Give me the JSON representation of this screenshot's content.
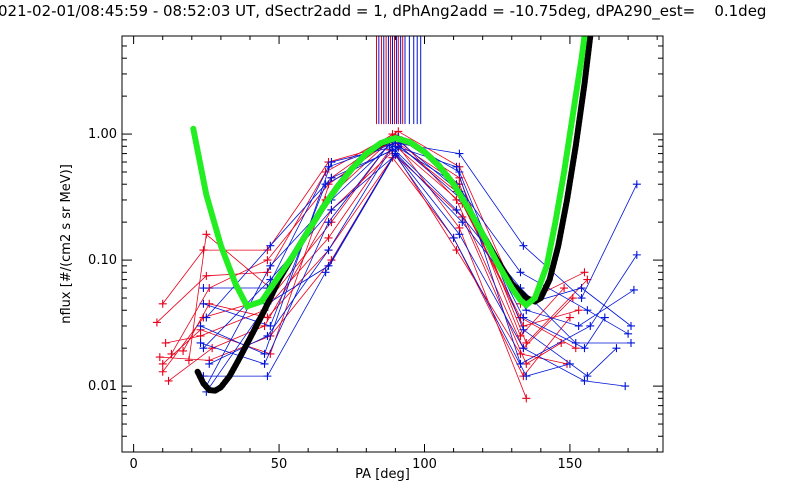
{
  "chart_data": {
    "type": "line",
    "title": "021-02-01/08:45:59 - 08:52:03 UT, dSectr2add = 1, dPhAng2add = -10.75deg, dPA290_est=    0.1deg",
    "xlabel": "PA [deg]",
    "ylabel": "nflux [#/(cm2 s sr MeV)]",
    "xlim": [
      -4,
      182
    ],
    "ylim": [
      0.003,
      6
    ],
    "yscale": "log",
    "x_ticks": [
      0,
      50,
      100,
      150
    ],
    "x_tick_labels": [
      "0",
      "50",
      "100",
      "150"
    ],
    "y_ticks": [
      0.01,
      0.1,
      1.0
    ],
    "y_tick_labels": [
      "0.01",
      "0.10",
      "1.00"
    ],
    "grid": false,
    "colors": {
      "red": "#e8001a",
      "blue": "#0014d8",
      "green": "#22ee22",
      "black": "#000000"
    },
    "top_lines": {
      "y_from": 1.2,
      "y_to": 6,
      "red_x": [
        83.5,
        85.2,
        86.8,
        88.3,
        89.7,
        91.0,
        92.5
      ],
      "blue_x": [
        84.3,
        86.0,
        87.6,
        89.0,
        90.4,
        91.8,
        93.3,
        94.8,
        96.3,
        97.5,
        98.7
      ]
    },
    "fit_curves": {
      "green": {
        "x": [
          20.5,
          25,
          30,
          35,
          39,
          44,
          50,
          55,
          60,
          65,
          70,
          75,
          80,
          85,
          90,
          95,
          100,
          105,
          110,
          115,
          120,
          125,
          130,
          133,
          135,
          138,
          142,
          145,
          148,
          150,
          152,
          154,
          155
        ],
        "y": [
          1.1,
          0.33,
          0.13,
          0.065,
          0.043,
          0.047,
          0.075,
          0.11,
          0.17,
          0.26,
          0.38,
          0.53,
          0.7,
          0.85,
          0.93,
          0.86,
          0.72,
          0.56,
          0.4,
          0.26,
          0.16,
          0.095,
          0.06,
          0.048,
          0.044,
          0.05,
          0.09,
          0.2,
          0.5,
          1.0,
          2.0,
          4.0,
          6.0
        ]
      },
      "black": {
        "x": [
          22,
          24,
          26,
          28,
          30,
          33,
          36,
          40,
          45,
          50,
          55,
          60,
          65,
          70,
          75,
          80,
          85,
          90,
          95,
          100,
          105,
          110,
          115,
          120,
          125,
          130,
          135,
          138,
          140,
          143,
          146,
          149,
          152,
          155,
          157
        ],
        "y": [
          0.013,
          0.0105,
          0.0093,
          0.0092,
          0.0098,
          0.012,
          0.016,
          0.024,
          0.04,
          0.07,
          0.11,
          0.17,
          0.26,
          0.38,
          0.53,
          0.7,
          0.84,
          0.93,
          0.86,
          0.72,
          0.56,
          0.4,
          0.26,
          0.16,
          0.1,
          0.065,
          0.05,
          0.047,
          0.05,
          0.07,
          0.13,
          0.3,
          0.8,
          2.5,
          6.0
        ]
      }
    },
    "series": [
      {
        "color": "red",
        "points": [
          [
            13,
            0.018
          ],
          [
            26,
            0.06
          ],
          [
            46,
            0.1
          ],
          [
            67,
            0.4
          ],
          [
            89,
            0.9
          ],
          [
            112,
            0.4
          ],
          [
            133,
            0.025
          ],
          [
            148,
            0.06
          ]
        ]
      },
      {
        "color": "red",
        "points": [
          [
            10,
            0.013
          ],
          [
            24,
            0.035
          ],
          [
            47,
            0.05
          ],
          [
            68,
            0.2
          ],
          [
            90,
            0.98
          ],
          [
            111,
            0.3
          ],
          [
            134,
            0.02
          ],
          [
            151,
            0.05
          ]
        ]
      },
      {
        "color": "red",
        "points": [
          [
            8,
            0.032
          ],
          [
            25,
            0.075
          ],
          [
            46,
            0.08
          ],
          [
            66,
            0.5
          ],
          [
            91,
            1.05
          ],
          [
            112,
            0.55
          ],
          [
            133,
            0.045
          ],
          [
            155,
            0.08
          ]
        ]
      },
      {
        "color": "red",
        "points": [
          [
            11,
            0.022
          ],
          [
            23,
            0.025
          ],
          [
            45,
            0.04
          ],
          [
            67,
            0.15
          ],
          [
            88,
            0.75
          ],
          [
            113,
            0.22
          ],
          [
            135,
            0.015
          ],
          [
            147,
            0.022
          ]
        ]
      },
      {
        "color": "red",
        "points": [
          [
            9,
            0.017
          ],
          [
            26,
            0.016
          ],
          [
            47,
            0.025
          ],
          [
            68,
            0.1
          ],
          [
            89,
            0.65
          ],
          [
            110,
            0.15
          ],
          [
            134,
            0.012
          ],
          [
            150,
            0.035
          ]
        ]
      },
      {
        "color": "red",
        "points": [
          [
            10,
            0.045
          ],
          [
            24,
            0.12
          ],
          [
            46,
            0.12
          ],
          [
            67,
            0.6
          ],
          [
            90,
            0.85
          ],
          [
            111,
            0.35
          ],
          [
            133,
            0.035
          ],
          [
            152,
            0.02
          ]
        ]
      },
      {
        "color": "red",
        "points": [
          [
            12,
            0.011
          ],
          [
            27,
            0.02
          ],
          [
            45,
            0.03
          ],
          [
            68,
            0.25
          ],
          [
            91,
            0.8
          ],
          [
            112,
            0.18
          ],
          [
            135,
            0.008
          ]
        ]
      },
      {
        "color": "red",
        "points": [
          [
            19,
            0.016
          ],
          [
            25,
            0.16
          ],
          [
            47,
            0.06
          ],
          [
            66,
            0.3
          ],
          [
            88,
            0.88
          ],
          [
            113,
            0.28
          ],
          [
            134,
            0.03
          ],
          [
            153,
            0.04
          ]
        ]
      },
      {
        "color": "red",
        "points": [
          [
            17,
            0.019
          ],
          [
            26,
            0.045
          ],
          [
            46,
            0.035
          ],
          [
            67,
            0.12
          ],
          [
            90,
            0.7
          ],
          [
            111,
            0.12
          ],
          [
            133,
            0.018
          ],
          [
            149,
            0.015
          ]
        ]
      },
      {
        "color": "red",
        "points": [
          [
            10,
            0.015
          ],
          [
            23,
            0.028
          ],
          [
            47,
            0.018
          ],
          [
            68,
            0.45
          ],
          [
            89,
            1.0
          ],
          [
            112,
            0.45
          ],
          [
            135,
            0.022
          ],
          [
            156,
            0.07
          ]
        ]
      },
      {
        "color": "blue",
        "points": [
          [
            24,
            0.06
          ],
          [
            46,
            0.06
          ],
          [
            67,
            0.55
          ],
          [
            90,
            0.85
          ],
          [
            112,
            0.7
          ],
          [
            134,
            0.13
          ],
          [
            154,
            0.05
          ],
          [
            173,
            0.4
          ]
        ]
      },
      {
        "color": "blue",
        "points": [
          [
            25,
            0.035
          ],
          [
            47,
            0.13
          ],
          [
            68,
            0.45
          ],
          [
            91,
            0.78
          ],
          [
            111,
            0.4
          ],
          [
            133,
            0.08
          ],
          [
            156,
            0.04
          ],
          [
            170,
            0.026
          ]
        ]
      },
      {
        "color": "blue",
        "points": [
          [
            23,
            0.022
          ],
          [
            45,
            0.015
          ],
          [
            67,
            0.2
          ],
          [
            89,
            0.9
          ],
          [
            113,
            0.3
          ],
          [
            135,
            0.04
          ],
          [
            153,
            0.03
          ],
          [
            172,
            0.058
          ]
        ]
      },
      {
        "color": "blue",
        "points": [
          [
            24,
            0.012
          ],
          [
            46,
            0.012
          ],
          [
            66,
            0.08
          ],
          [
            90,
            0.7
          ],
          [
            112,
            0.16
          ],
          [
            134,
            0.02
          ],
          [
            155,
            0.011
          ],
          [
            169,
            0.01
          ]
        ]
      },
      {
        "color": "blue",
        "points": [
          [
            25,
            0.01
          ],
          [
            47,
            0.09
          ],
          [
            68,
            0.3
          ],
          [
            88,
            0.82
          ],
          [
            111,
            0.25
          ],
          [
            133,
            0.06
          ],
          [
            152,
            0.022
          ],
          [
            171,
            0.022
          ]
        ]
      },
      {
        "color": "blue",
        "points": [
          [
            26,
            0.015
          ],
          [
            46,
            0.025
          ],
          [
            67,
            0.12
          ],
          [
            91,
            0.95
          ],
          [
            112,
            0.5
          ],
          [
            134,
            0.028
          ],
          [
            156,
            0.012
          ],
          [
            166,
            0.02
          ]
        ]
      },
      {
        "color": "blue",
        "points": [
          [
            24,
            0.045
          ],
          [
            47,
            0.03
          ],
          [
            66,
            0.4
          ],
          [
            89,
            0.75
          ],
          [
            113,
            0.2
          ],
          [
            135,
            0.045
          ],
          [
            154,
            0.06
          ],
          [
            171,
            0.03
          ]
        ]
      },
      {
        "color": "blue",
        "points": [
          [
            23,
            0.03
          ],
          [
            45,
            0.018
          ],
          [
            68,
            0.6
          ],
          [
            90,
            0.8
          ],
          [
            111,
            0.55
          ],
          [
            133,
            0.015
          ],
          [
            157,
            0.03
          ],
          [
            173,
            0.11
          ]
        ]
      },
      {
        "color": "blue",
        "points": [
          [
            25,
            0.009
          ],
          [
            46,
            0.045
          ],
          [
            67,
            0.09
          ],
          [
            92,
            0.85
          ],
          [
            112,
            0.35
          ],
          [
            134,
            0.035
          ],
          [
            155,
            0.02
          ],
          [
            162,
            0.035
          ]
        ]
      },
      {
        "color": "blue",
        "points": [
          [
            24,
            0.02
          ],
          [
            47,
            0.07
          ],
          [
            68,
            0.25
          ],
          [
            90,
            0.68
          ],
          [
            110,
            0.15
          ],
          [
            135,
            0.012
          ],
          [
            150,
            0.015
          ]
        ]
      }
    ]
  }
}
